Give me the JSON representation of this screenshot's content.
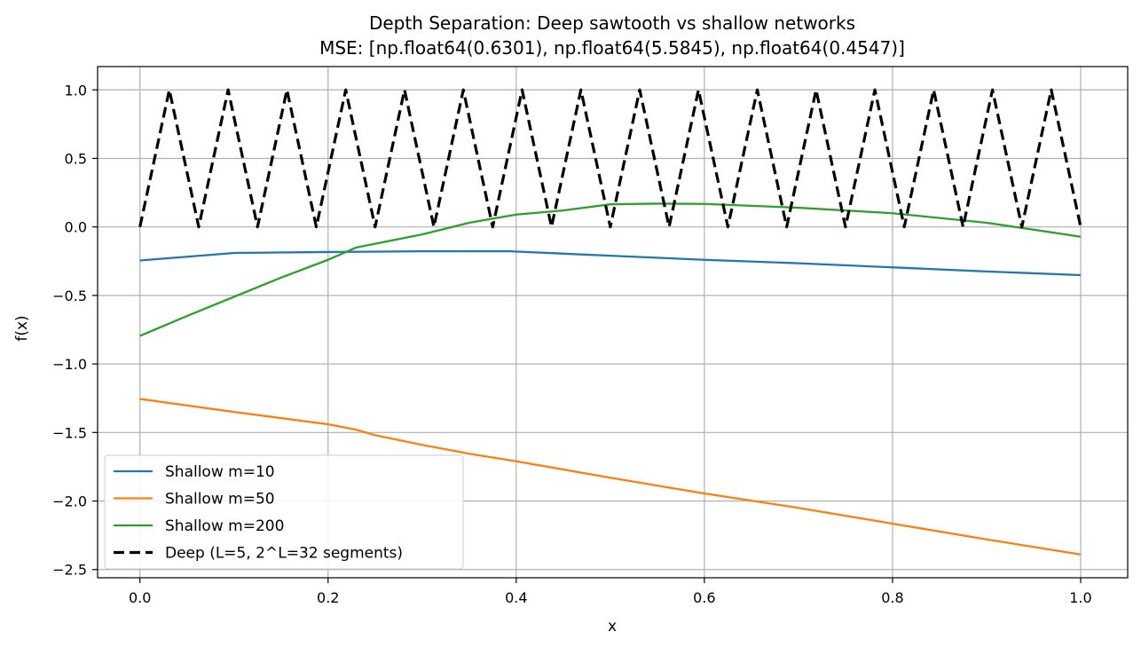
{
  "chart_data": {
    "type": "line",
    "title": "Depth Separation: Deep sawtooth vs shallow networks",
    "subtitle": "MSE: [np.float64(0.6301), np.float64(5.5845), np.float64(0.4547)]",
    "xlabel": "x",
    "ylabel": "f(x)",
    "xlim": [
      -0.045,
      1.05
    ],
    "ylim": [
      -2.56,
      1.17
    ],
    "xticks": [
      0.0,
      0.2,
      0.4,
      0.6,
      0.8,
      1.0
    ],
    "xtick_labels": [
      "0.0",
      "0.2",
      "0.4",
      "0.6",
      "0.8",
      "1.0"
    ],
    "yticks": [
      1.0,
      0.5,
      0.0,
      -0.5,
      -1.0,
      -1.5,
      -2.0,
      -2.5
    ],
    "ytick_labels": [
      "1.0",
      "0.5",
      "0.0",
      "−0.5",
      "−1.0",
      "−1.5",
      "−2.0",
      "−2.5"
    ],
    "grid": true,
    "legend_position": "lower-left",
    "series": [
      {
        "name": "Shallow m=10",
        "color": "#1f77b4",
        "dash": "solid",
        "points": [
          [
            0.0,
            -0.245
          ],
          [
            0.1,
            -0.19
          ],
          [
            0.2,
            -0.183
          ],
          [
            0.3,
            -0.178
          ],
          [
            0.39,
            -0.177
          ],
          [
            0.5,
            -0.21
          ],
          [
            0.6,
            -0.24
          ],
          [
            0.7,
            -0.265
          ],
          [
            0.8,
            -0.295
          ],
          [
            0.9,
            -0.325
          ],
          [
            1.0,
            -0.352
          ]
        ]
      },
      {
        "name": "Shallow m=50",
        "color": "#ff7f0e",
        "dash": "solid",
        "points": [
          [
            0.0,
            -1.255
          ],
          [
            0.1,
            -1.35
          ],
          [
            0.2,
            -1.44
          ],
          [
            0.23,
            -1.48
          ],
          [
            0.25,
            -1.52
          ],
          [
            0.3,
            -1.59
          ],
          [
            0.35,
            -1.655
          ],
          [
            0.4,
            -1.71
          ],
          [
            0.5,
            -1.83
          ],
          [
            0.6,
            -1.945
          ],
          [
            0.7,
            -2.05
          ],
          [
            0.8,
            -2.165
          ],
          [
            0.9,
            -2.28
          ],
          [
            1.0,
            -2.39
          ]
        ]
      },
      {
        "name": "Shallow m=200",
        "color": "#2ca02c",
        "dash": "solid",
        "points": [
          [
            0.0,
            -0.795
          ],
          [
            0.05,
            -0.65
          ],
          [
            0.1,
            -0.51
          ],
          [
            0.15,
            -0.37
          ],
          [
            0.2,
            -0.24
          ],
          [
            0.23,
            -0.15
          ],
          [
            0.3,
            -0.055
          ],
          [
            0.35,
            0.03
          ],
          [
            0.4,
            0.09
          ],
          [
            0.45,
            0.12
          ],
          [
            0.5,
            0.165
          ],
          [
            0.55,
            0.17
          ],
          [
            0.6,
            0.168
          ],
          [
            0.7,
            0.14
          ],
          [
            0.8,
            0.1
          ],
          [
            0.9,
            0.03
          ],
          [
            0.95,
            -0.02
          ],
          [
            1.0,
            -0.072
          ]
        ]
      },
      {
        "name": "Deep (L=5, 2^L=32 segments)",
        "color": "#000000",
        "dash": "dashed",
        "points": [
          [
            0.0,
            0.0
          ],
          [
            0.03125,
            1.0
          ],
          [
            0.0625,
            0.0
          ],
          [
            0.09375,
            1.0
          ],
          [
            0.125,
            0.0
          ],
          [
            0.15625,
            1.0
          ],
          [
            0.1875,
            0.0
          ],
          [
            0.21875,
            1.0
          ],
          [
            0.25,
            0.0
          ],
          [
            0.28125,
            1.0
          ],
          [
            0.3125,
            0.0
          ],
          [
            0.34375,
            1.0
          ],
          [
            0.375,
            0.0
          ],
          [
            0.40625,
            1.0
          ],
          [
            0.4375,
            0.0
          ],
          [
            0.46875,
            1.0
          ],
          [
            0.5,
            0.0
          ],
          [
            0.53125,
            1.0
          ],
          [
            0.5625,
            0.0
          ],
          [
            0.59375,
            1.0
          ],
          [
            0.625,
            0.0
          ],
          [
            0.65625,
            1.0
          ],
          [
            0.6875,
            0.0
          ],
          [
            0.71875,
            1.0
          ],
          [
            0.75,
            0.0
          ],
          [
            0.78125,
            1.0
          ],
          [
            0.8125,
            0.0
          ],
          [
            0.84375,
            1.0
          ],
          [
            0.875,
            0.0
          ],
          [
            0.90625,
            1.0
          ],
          [
            0.9375,
            0.0
          ],
          [
            0.96875,
            1.0
          ],
          [
            1.0,
            0.0
          ]
        ]
      }
    ]
  }
}
